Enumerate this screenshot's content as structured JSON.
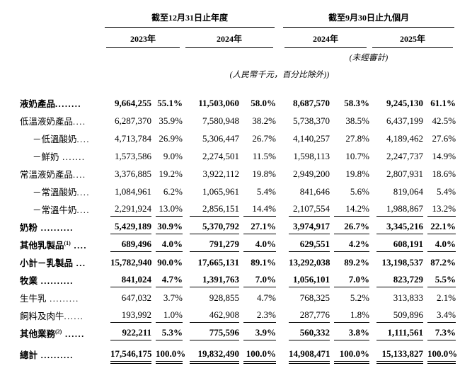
{
  "header": {
    "group1": "截至12月31日止年度",
    "group2": "截至9月30日止九個月",
    "years": [
      "2023年",
      "2024年",
      "2024年",
      "2025年"
    ],
    "unaudited_note": "(未經審計)",
    "units_note": "(人民幣千元，百分比除外))"
  },
  "table": {
    "rows": [
      {
        "label": "液奶產品",
        "dots": "........",
        "indent": 0,
        "bold": true,
        "underline": "none",
        "cells": [
          "9,664,255",
          "55.1%",
          "11,503,060",
          "58.0%",
          "8,687,570",
          "58.3%",
          "9,245,130",
          "61.1%"
        ]
      },
      {
        "label": "低溫液奶產品",
        "dots": "....",
        "indent": 0,
        "bold": false,
        "underline": "none",
        "cells": [
          "6,287,370",
          "35.9%",
          "7,580,948",
          "38.2%",
          "5,738,370",
          "38.5%",
          "6,437,199",
          "42.5%"
        ]
      },
      {
        "label": "－低溫酸奶",
        "dots": "....",
        "indent": 1,
        "bold": false,
        "underline": "none",
        "cells": [
          "4,713,784",
          "26.9%",
          "5,306,447",
          "26.7%",
          "4,140,257",
          "27.8%",
          "4,189,462",
          "27.6%"
        ]
      },
      {
        "label": "－鮮奶",
        "dots": " .......",
        "indent": 1,
        "bold": false,
        "underline": "none",
        "cells": [
          "1,573,586",
          "9.0%",
          "2,274,501",
          "11.5%",
          "1,598,113",
          "10.7%",
          "2,247,737",
          "14.9%"
        ]
      },
      {
        "label": "常溫液奶產品",
        "dots": "....",
        "indent": 0,
        "bold": false,
        "underline": "none",
        "cells": [
          "3,376,885",
          "19.2%",
          "3,922,112",
          "19.8%",
          "2,949,200",
          "19.8%",
          "2,807,931",
          "18.6%"
        ]
      },
      {
        "label": "－常溫酸奶",
        "dots": "....",
        "indent": 1,
        "bold": false,
        "underline": "none",
        "cells": [
          "1,084,961",
          "6.2%",
          "1,065,961",
          "5.4%",
          "841,646",
          "5.6%",
          "819,064",
          "5.4%"
        ]
      },
      {
        "label": "－常溫牛奶",
        "dots": "....",
        "indent": 1,
        "bold": false,
        "underline": "single",
        "cells": [
          "2,291,924",
          "13.0%",
          "2,856,151",
          "14.4%",
          "2,107,554",
          "14.2%",
          "1,988,867",
          "13.2%"
        ]
      },
      {
        "label": "奶粉",
        "dots": " ..........",
        "indent": 0,
        "bold": true,
        "underline": "single",
        "cells": [
          "5,429,189",
          "30.9%",
          "5,370,792",
          "27.1%",
          "3,974,917",
          "26.7%",
          "3,345,216",
          "22.1%"
        ]
      },
      {
        "label": "其他乳製品",
        "sup": "(1)",
        "dots": " ....",
        "indent": 0,
        "bold": true,
        "underline": "single",
        "cells": [
          "689,496",
          "4.0%",
          "791,279",
          "4.0%",
          "629,551",
          "4.2%",
          "608,191",
          "4.0%"
        ]
      },
      {
        "label": "小計－乳製品",
        "dots": " ...",
        "indent": 0,
        "bold": true,
        "underline": "none",
        "cells": [
          "15,782,940",
          "90.0%",
          "17,665,131",
          "89.1%",
          "13,292,038",
          "89.2%",
          "13,198,537",
          "87.2%"
        ]
      },
      {
        "label": "牧業",
        "dots": " ..........",
        "indent": 0,
        "bold": true,
        "underline": "single",
        "cells": [
          "841,024",
          "4.7%",
          "1,391,763",
          "7.0%",
          "1,056,101",
          "7.0%",
          "823,729",
          "5.5%"
        ]
      },
      {
        "label": "生牛乳",
        "dots": " .........",
        "indent": 0,
        "bold": false,
        "underline": "none",
        "cells": [
          "647,032",
          "3.7%",
          "928,855",
          "4.7%",
          "768,325",
          "5.2%",
          "313,833",
          "2.1%"
        ]
      },
      {
        "label": "飼料及肉牛",
        "dots": "......",
        "indent": 0,
        "bold": false,
        "underline": "single",
        "cells": [
          "193,992",
          "1.0%",
          "462,908",
          "2.3%",
          "287,776",
          "1.8%",
          "509,896",
          "3.4%"
        ]
      },
      {
        "label": "其他業務",
        "sup": "(2)",
        "dots": " ......",
        "indent": 0,
        "bold": true,
        "underline": "single",
        "cells": [
          "922,211",
          "5.3%",
          "775,596",
          "3.9%",
          "560,332",
          "3.8%",
          "1,111,561",
          "7.3%"
        ]
      },
      {
        "label": "總計",
        "dots": " ..........",
        "indent": 0,
        "bold": true,
        "underline": "double",
        "cells": [
          "17,546,175",
          "100.0%",
          "19,832,490",
          "100.0%",
          "14,908,471",
          "100.0%",
          "15,133,827",
          "100.0%"
        ]
      }
    ]
  }
}
